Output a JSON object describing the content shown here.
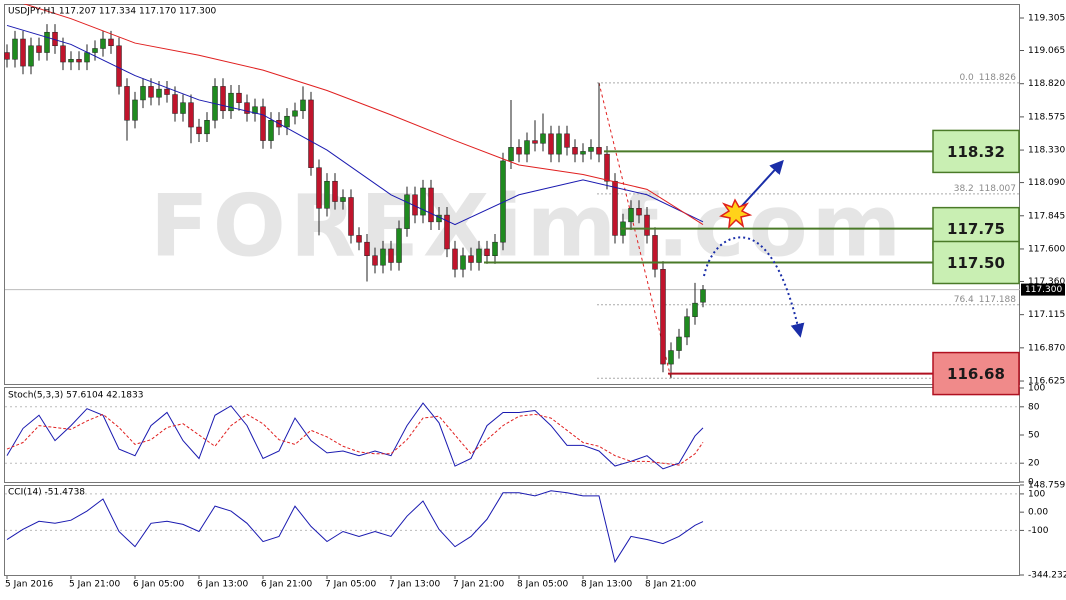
{
  "chart_data": [
    {
      "type": "candlestick",
      "title": "USDJPY,H1  117.207 117.334 117.170 117.300",
      "categories": [
        "5 Jan 2016",
        null,
        null,
        null,
        null,
        null,
        null,
        null,
        "5 Jan 21:00",
        null,
        null,
        null,
        null,
        null,
        null,
        null,
        "6 Jan 05:00",
        null,
        null,
        null,
        null,
        null,
        null,
        null,
        "6 Jan 13:00",
        null,
        null,
        null,
        null,
        null,
        null,
        null,
        "6 Jan 21:00",
        null,
        null,
        null,
        null,
        null,
        null,
        null,
        "7 Jan 05:00",
        null,
        null,
        null,
        null,
        null,
        null,
        null,
        "7 Jan 13:00",
        null,
        null,
        null,
        null,
        null,
        null,
        null,
        "7 Jan 21:00",
        null,
        null,
        null,
        null,
        null,
        null,
        null,
        "8 Jan 05:00",
        null,
        null,
        null,
        null,
        null,
        null,
        null,
        "8 Jan 13:00",
        null,
        null,
        null,
        null,
        null,
        null,
        null,
        "8 Jan 21:00",
        null,
        null,
        null,
        null,
        null,
        null,
        null
      ],
      "open": [
        119.05,
        119.0,
        119.15,
        118.95,
        119.1,
        119.05,
        119.2,
        119.1,
        118.98,
        119.0,
        118.98,
        119.05,
        119.08,
        119.15,
        119.1,
        118.8,
        118.55,
        118.7,
        118.8,
        118.72,
        118.78,
        118.74,
        118.6,
        118.68,
        118.5,
        118.45,
        118.55,
        118.8,
        118.62,
        118.75,
        118.68,
        118.6,
        118.65,
        118.4,
        118.55,
        118.5,
        118.58,
        118.62,
        118.7,
        118.2,
        117.9,
        118.1,
        117.95,
        117.98,
        117.7,
        117.65,
        117.55,
        117.48,
        117.6,
        117.5,
        117.75,
        118.0,
        117.85,
        118.05,
        117.8,
        117.85,
        117.6,
        117.45,
        117.55,
        117.5,
        117.6,
        117.55,
        117.65,
        118.25,
        118.35,
        118.3,
        118.4,
        118.38,
        118.45,
        118.3,
        118.45,
        118.35,
        118.3,
        118.32,
        118.35,
        118.3,
        118.1,
        117.7,
        117.8,
        117.9,
        117.85,
        117.7,
        117.45,
        116.75,
        116.85,
        116.95,
        117.1,
        117.207
      ],
      "high": [
        119.11,
        119.21,
        119.21,
        119.16,
        119.16,
        119.26,
        119.26,
        119.16,
        119.06,
        119.06,
        119.11,
        119.14,
        119.21,
        119.21,
        119.16,
        118.86,
        118.76,
        118.86,
        118.86,
        118.84,
        118.84,
        118.8,
        118.74,
        118.74,
        118.56,
        118.61,
        118.86,
        118.86,
        118.81,
        118.81,
        118.74,
        118.71,
        118.71,
        118.61,
        118.61,
        118.64,
        118.68,
        118.8,
        118.76,
        118.26,
        118.16,
        118.16,
        118.04,
        118.04,
        117.76,
        117.71,
        117.61,
        117.66,
        117.66,
        117.81,
        118.06,
        118.06,
        118.11,
        118.11,
        117.91,
        117.91,
        117.66,
        117.61,
        117.61,
        117.66,
        117.66,
        117.71,
        118.31,
        118.7,
        118.41,
        118.46,
        118.55,
        118.6,
        118.51,
        118.51,
        118.51,
        118.41,
        118.38,
        118.41,
        118.826,
        118.36,
        118.16,
        117.86,
        117.96,
        117.96,
        117.91,
        117.76,
        117.51,
        116.91,
        117.01,
        117.16,
        117.35,
        117.334
      ],
      "low": [
        118.94,
        118.94,
        118.89,
        118.89,
        118.99,
        118.99,
        119.04,
        118.92,
        118.92,
        118.92,
        118.92,
        118.99,
        119.02,
        119.04,
        118.74,
        118.4,
        118.49,
        118.64,
        118.66,
        118.66,
        118.68,
        118.54,
        118.54,
        118.38,
        118.39,
        118.39,
        118.49,
        118.56,
        118.56,
        118.62,
        118.54,
        118.54,
        118.34,
        118.34,
        118.44,
        118.44,
        118.52,
        118.56,
        118.14,
        117.7,
        117.84,
        117.89,
        117.89,
        117.64,
        117.59,
        117.36,
        117.42,
        117.42,
        117.44,
        117.44,
        117.69,
        117.79,
        117.79,
        117.74,
        117.74,
        117.54,
        117.39,
        117.39,
        117.44,
        117.44,
        117.49,
        117.49,
        117.59,
        118.19,
        118.24,
        118.24,
        118.32,
        118.32,
        118.24,
        118.24,
        118.29,
        118.24,
        118.24,
        118.26,
        118.24,
        118.04,
        117.64,
        117.64,
        117.74,
        117.79,
        117.64,
        117.39,
        116.69,
        116.645,
        116.79,
        116.89,
        117.04,
        117.17
      ],
      "close": [
        119.0,
        119.15,
        118.95,
        119.1,
        119.05,
        119.2,
        119.1,
        118.98,
        119.0,
        118.98,
        119.05,
        119.08,
        119.15,
        119.1,
        118.8,
        118.55,
        118.7,
        118.8,
        118.72,
        118.78,
        118.74,
        118.6,
        118.68,
        118.5,
        118.45,
        118.55,
        118.8,
        118.62,
        118.75,
        118.68,
        118.6,
        118.65,
        118.4,
        118.55,
        118.5,
        118.58,
        118.62,
        118.7,
        118.2,
        117.9,
        118.1,
        117.95,
        117.98,
        117.7,
        117.65,
        117.55,
        117.48,
        117.6,
        117.5,
        117.75,
        118.0,
        117.85,
        118.05,
        117.8,
        117.85,
        117.6,
        117.45,
        117.55,
        117.5,
        117.6,
        117.55,
        117.65,
        118.25,
        118.35,
        118.3,
        118.4,
        118.38,
        118.45,
        118.3,
        118.45,
        118.35,
        118.3,
        118.32,
        118.35,
        118.3,
        118.1,
        117.7,
        117.8,
        117.9,
        117.85,
        117.7,
        117.45,
        116.75,
        116.85,
        116.95,
        117.1,
        117.2,
        117.3
      ],
      "up_color": "#1f8a1f",
      "down_color": "#c0142c",
      "ylim": [
        116.603,
        119.401
      ],
      "yticks": [
        119.305,
        119.065,
        {
          "value": 118.82,
          "label": "118.820"
        },
        118.575,
        {
          "value": 118.33,
          "label": "118.330"
        },
        {
          "value": 118.09,
          "label": "118.090"
        },
        117.845,
        {
          "value": 117.6,
          "label": "117.600"
        },
        {
          "value": 117.36,
          "label": "117.360"
        },
        117.115,
        {
          "value": 116.87,
          "label": "116.870"
        },
        116.625
      ],
      "current_price": {
        "value": 117.3,
        "label": "117.300"
      },
      "overlays": [
        {
          "color": "#1a1ab0",
          "x": [
            0,
            8,
            16,
            24,
            32,
            40,
            48,
            56,
            64,
            72,
            80,
            87
          ],
          "values": [
            119.25,
            119.11,
            118.88,
            118.7,
            118.59,
            118.33,
            118.0,
            117.78,
            118.0,
            118.11,
            118.0,
            117.8
          ]
        },
        {
          "color": "#e02020",
          "x": [
            0,
            8,
            16,
            24,
            32,
            40,
            48,
            56,
            64,
            72,
            80,
            87
          ],
          "values": [
            119.45,
            119.3,
            119.12,
            119.03,
            118.92,
            118.77,
            118.59,
            118.4,
            118.22,
            118.15,
            118.04,
            117.78
          ]
        }
      ],
      "levels": [
        {
          "value": 118.32,
          "color": "#4a7a28",
          "fill": "#c9efb3"
        },
        {
          "value": 117.75,
          "color": "#4a7a28",
          "fill": "#c9efb3"
        },
        {
          "value": 117.5,
          "label": "117.50",
          "color": "#4a7a28",
          "fill": "#c9efb3"
        },
        {
          "value": 116.68,
          "color": "#b01020",
          "fill": "#f08a8a"
        }
      ],
      "fib": [
        {
          "ratio": "0.0",
          "value": 118.826
        },
        {
          "ratio": "38.2",
          "value": 118.007
        },
        {
          "ratio": "76.4",
          "value": 117.188
        }
      ],
      "watermark": "FOREXimf.com"
    },
    {
      "type": "line",
      "title": "Stoch(5,3,3) 57.6104 42.1833",
      "x": [
        0,
        2,
        4,
        6,
        8,
        10,
        12,
        14,
        16,
        18,
        20,
        22,
        24,
        26,
        28,
        30,
        32,
        34,
        36,
        38,
        40,
        42,
        44,
        46,
        48,
        50,
        52,
        54,
        56,
        58,
        60,
        62,
        64,
        66,
        68,
        70,
        72,
        74,
        76,
        78,
        80,
        82,
        84,
        86,
        87
      ],
      "series": [
        {
          "color": "#1a1ab0",
          "values": [
            28,
            57,
            71,
            44,
            60,
            78,
            71,
            35,
            28,
            60,
            74,
            44,
            25,
            71,
            81,
            60,
            25,
            33,
            68,
            44,
            31,
            33,
            28,
            33,
            28,
            60,
            84,
            63,
            17,
            25,
            60,
            74,
            74,
            76,
            60,
            39,
            39,
            33,
            17,
            22,
            28,
            14,
            20,
            49,
            57.6104
          ]
        },
        {
          "color": "#e02020",
          "dash": true,
          "values": [
            35,
            42,
            60,
            58,
            56,
            65,
            72,
            58,
            40,
            45,
            58,
            62,
            50,
            38,
            60,
            72,
            62,
            45,
            40,
            55,
            48,
            38,
            32,
            30,
            30,
            45,
            68,
            70,
            50,
            30,
            45,
            60,
            70,
            72,
            68,
            55,
            42,
            38,
            28,
            22,
            22,
            20,
            18,
            30,
            42.1833
          ]
        }
      ],
      "ylim": [
        0,
        100
      ],
      "yticks": [
        100,
        80,
        50,
        20,
        0
      ],
      "levels": [
        80,
        20
      ]
    },
    {
      "type": "line",
      "title": "CCI(14) -51.4738",
      "x": [
        0,
        2,
        4,
        6,
        8,
        10,
        12,
        14,
        16,
        18,
        20,
        22,
        24,
        26,
        28,
        30,
        32,
        34,
        36,
        38,
        40,
        42,
        44,
        46,
        48,
        50,
        52,
        54,
        56,
        58,
        60,
        62,
        64,
        66,
        68,
        70,
        72,
        74,
        76,
        78,
        80,
        82,
        84,
        86,
        87
      ],
      "series": [
        {
          "color": "#1a1ab0",
          "values": [
            -150,
            -94,
            -50,
            -61,
            -44,
            6,
            72,
            -106,
            -189,
            -61,
            -50,
            -67,
            -106,
            33,
            6,
            -61,
            -161,
            -133,
            33,
            -78,
            -161,
            -106,
            -133,
            -106,
            -133,
            -22,
            61,
            -94,
            -189,
            -133,
            -39,
            106,
            106,
            89,
            117,
            106,
            89,
            89,
            -272,
            -133,
            -150,
            -172,
            -133,
            -72,
            -51.4738
          ]
        }
      ],
      "ylim": [
        -344.2328,
        148.7597
      ],
      "yticks": [
        148.7597,
        100,
        {
          "value": 0,
          "label": "0.00"
        },
        -100,
        -344.2328
      ],
      "levels": [
        100,
        -100
      ]
    }
  ]
}
